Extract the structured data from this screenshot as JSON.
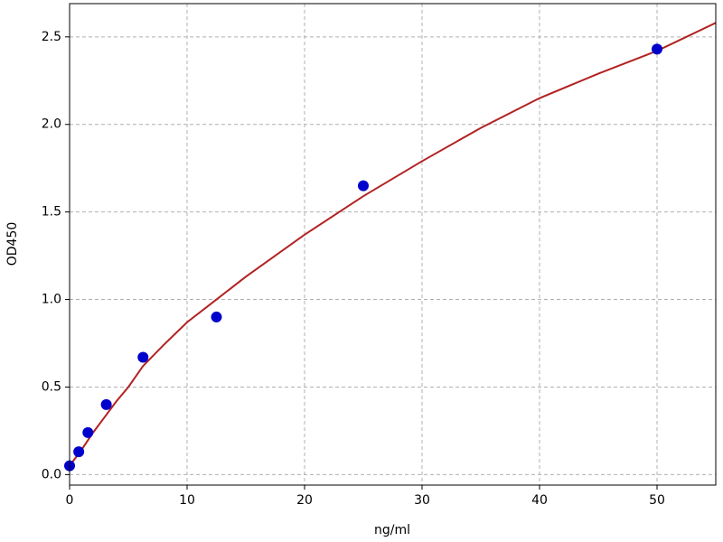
{
  "chart_data": {
    "type": "scatter",
    "xlabel": "ng/ml",
    "ylabel": "OD450",
    "xlim": [
      0,
      55
    ],
    "ylim": [
      -0.06,
      2.69
    ],
    "xticks": [
      0,
      10,
      20,
      30,
      40,
      50
    ],
    "yticks": [
      {
        "value": 0,
        "label": "0.0"
      },
      0.5,
      {
        "value": 1,
        "label": "1.0"
      },
      1.5,
      {
        "value": 2,
        "label": "2.0"
      },
      2.5
    ],
    "grid": true,
    "series": [
      {
        "type": "line",
        "color": "#b22222",
        "x": [
          0,
          1,
          2,
          3,
          4,
          5,
          6.25,
          8,
          10,
          12.5,
          15,
          20,
          25,
          30,
          35,
          40,
          45,
          50,
          55
        ],
        "values": [
          0.05,
          0.14,
          0.24,
          0.33,
          0.42,
          0.5,
          0.62,
          0.74,
          0.87,
          1.0,
          1.13,
          1.37,
          1.59,
          1.79,
          1.98,
          2.15,
          2.29,
          2.42,
          2.58
        ]
      },
      {
        "type": "scatter",
        "color": "#0000cc",
        "x": [
          0,
          0.78,
          1.56,
          3.125,
          6.25,
          12.5,
          25,
          50
        ],
        "values": [
          0.05,
          0.13,
          0.24,
          0.4,
          0.67,
          0.9,
          1.65,
          2.43
        ]
      }
    ]
  }
}
